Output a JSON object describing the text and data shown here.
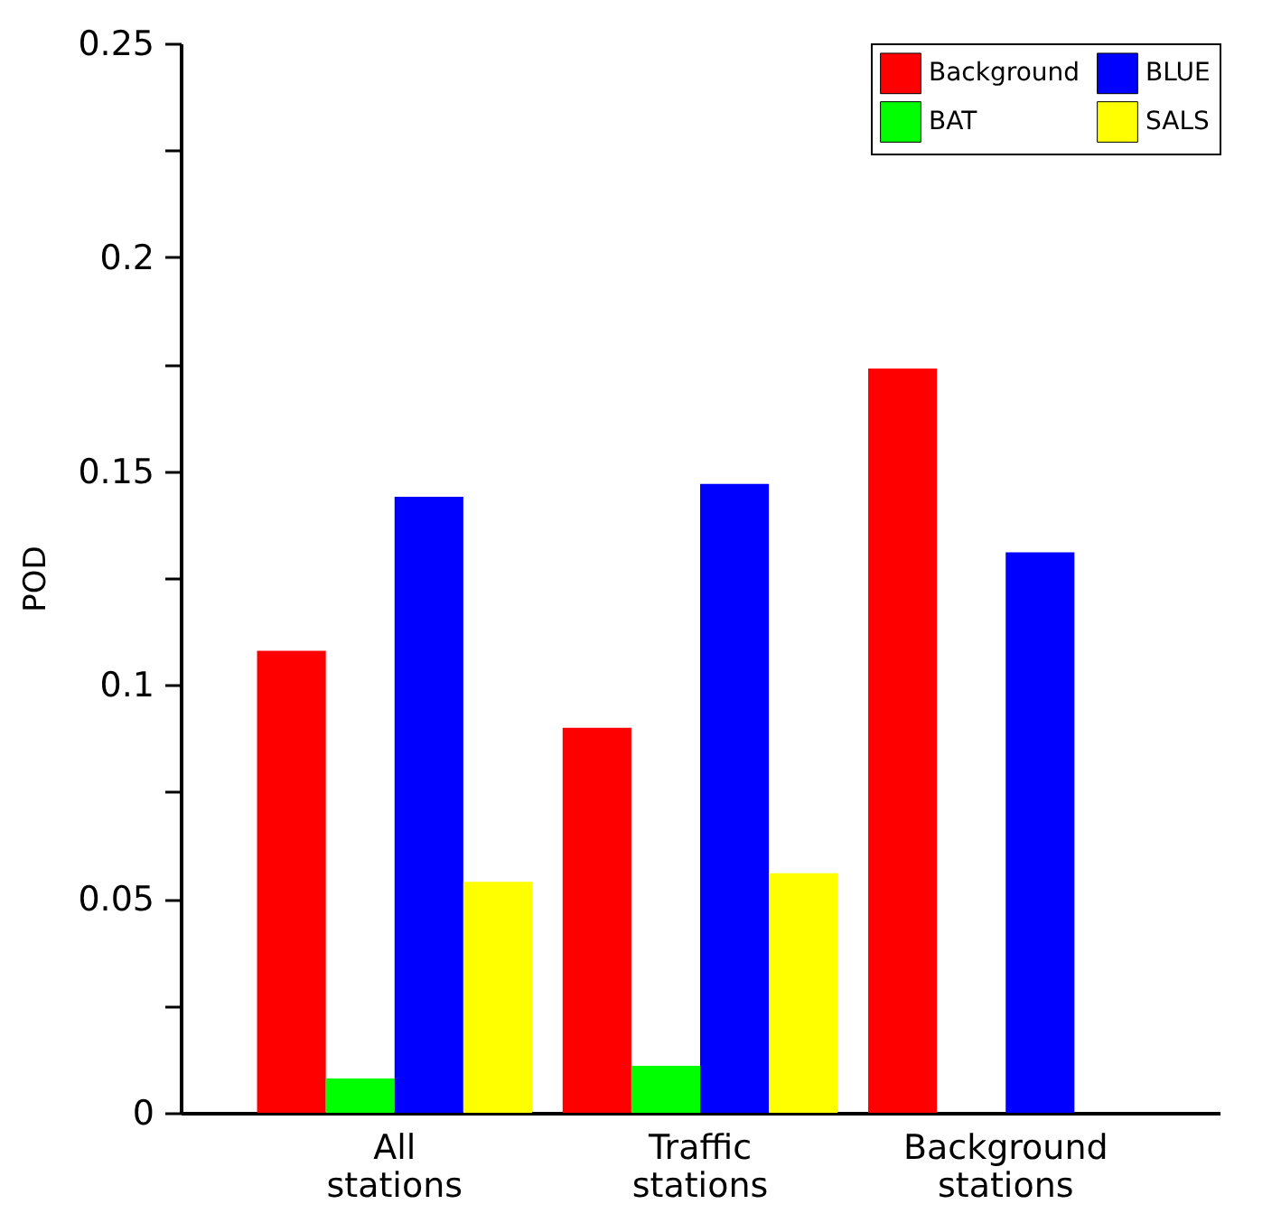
{
  "chart_data": {
    "type": "bar",
    "ylabel": "POD",
    "categories": [
      "All stations",
      "Traffic stations",
      "Background stations"
    ],
    "series": [
      {
        "name": "Background",
        "color": "#ff0000",
        "values": [
          0.108,
          0.09,
          0.174
        ]
      },
      {
        "name": "BAT",
        "color": "#00ff00",
        "values": [
          0.008,
          0.011,
          null
        ]
      },
      {
        "name": "BLUE",
        "color": "#0000ff",
        "values": [
          0.144,
          0.147,
          0.131
        ]
      },
      {
        "name": "SALS",
        "color": "#ffff00",
        "values": [
          0.054,
          0.056,
          null
        ]
      }
    ],
    "ylim": [
      0,
      0.25
    ],
    "yticks": [
      0,
      {
        "value": 0.025,
        "label": null
      },
      0.05,
      {
        "value": 0.075,
        "label": null
      },
      0.1,
      {
        "value": 0.125,
        "label": null
      },
      0.15,
      {
        "value": 0.175,
        "label": null
      },
      0.2,
      {
        "value": 0.225,
        "label": null
      },
      0.25
    ],
    "grid": false,
    "legend": "top right"
  }
}
